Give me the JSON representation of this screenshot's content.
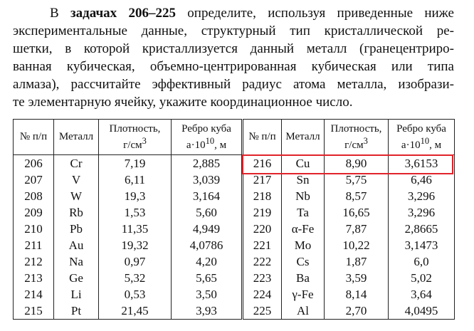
{
  "intro": {
    "lead": "В ",
    "bold": "задачах 206–225",
    "rest": " определите, используя приведенные ниже",
    "lines": [
      "экспериментальные данные, структурный тип кристаллической ре-",
      "шетки, в которой кристаллизуется данный металл (гранецентриро-",
      "ванная кубическая, объемно-центрированная кубическая или типа",
      "алмаза), рассчитайте эффективный радиус атома металла, изобрази-",
      "те элементарную ячейку, укажите координационное число."
    ]
  },
  "table": {
    "header": {
      "num": "№ п/п",
      "metal": "Металл",
      "density": {
        "line1": "Плотность,",
        "line2": "г/см",
        "sup": "3"
      },
      "edge": {
        "line1": "Ребро куба",
        "line2": "a·10",
        "sup": "10",
        "unit": ", м"
      }
    },
    "rows": [
      [
        "206",
        "Cr",
        "7,19",
        "2,885",
        "216",
        "Cu",
        "8,90",
        "3,6153"
      ],
      [
        "207",
        "V",
        "6,11",
        "3,039",
        "217",
        "Sn",
        "5,75",
        "6,46"
      ],
      [
        "208",
        "W",
        "19,3",
        "3,164",
        "218",
        "Nb",
        "8,57",
        "3,296"
      ],
      [
        "209",
        "Rb",
        "1,53",
        "5,60",
        "219",
        "Ta",
        "16,65",
        "3,296"
      ],
      [
        "210",
        "Pb",
        "11,35",
        "4,949",
        "220",
        "α-Fe",
        "7,87",
        "2,8665"
      ],
      [
        "211",
        "Au",
        "19,32",
        "4,0786",
        "221",
        "Mo",
        "10,22",
        "3,1473"
      ],
      [
        "212",
        "Na",
        "0,97",
        "4,20",
        "222",
        "Cs",
        "1,87",
        "6,0"
      ],
      [
        "213",
        "Ge",
        "5,32",
        "5,65",
        "223",
        "Ba",
        "3,59",
        "5,02"
      ],
      [
        "214",
        "Li",
        "0,53",
        "3,50",
        "224",
        "γ-Fe",
        "8,14",
        "3,64"
      ],
      [
        "215",
        "Pt",
        "21,45",
        "3,93",
        "225",
        "Al",
        "2,70",
        "4,0495"
      ]
    ]
  }
}
